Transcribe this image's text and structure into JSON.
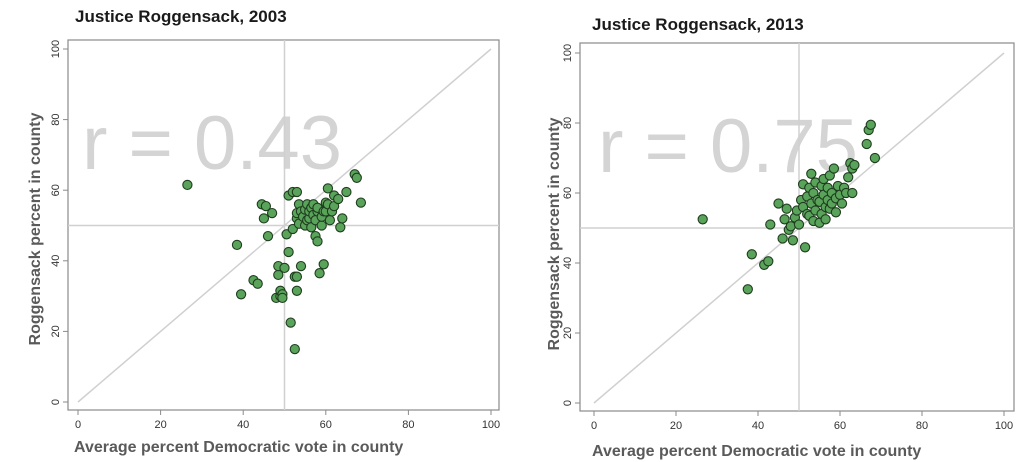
{
  "chart_data": [
    {
      "type": "scatter",
      "title": "Justice Roggensack, 2003",
      "annotation": "r = 0.43",
      "xlabel": "Average percent Democratic vote in county",
      "ylabel": "Roggensack percent in county",
      "xlim": [
        0,
        100
      ],
      "ylim": [
        0,
        100
      ],
      "xticks": [
        "0",
        "20",
        "40",
        "60",
        "80",
        "100"
      ],
      "yticks": [
        "0",
        "20",
        "40",
        "60",
        "80",
        "100"
      ],
      "reference_lines": {
        "x": 50,
        "y": 50,
        "diagonal": true
      },
      "point_color": "#5aa35a",
      "x": [
        26.5,
        38.5,
        39.5,
        42.5,
        43.5,
        44.5,
        45,
        45.5,
        46,
        47,
        48,
        48.5,
        48.5,
        49,
        49,
        49.5,
        49.5,
        50,
        50.5,
        51,
        51,
        51.5,
        52,
        52,
        52.5,
        52.5,
        53,
        53,
        53,
        53,
        53,
        53.5,
        53.5,
        54,
        54,
        54.5,
        55,
        55,
        55.5,
        55.5,
        56,
        56,
        56.5,
        56.5,
        57,
        57,
        57.5,
        57.5,
        58,
        58,
        58,
        58.5,
        59,
        59,
        59.5,
        59.5,
        60,
        60,
        60.5,
        60.5,
        61,
        61.5,
        62,
        62,
        63,
        63.5,
        64,
        65,
        67,
        67.5,
        68.5
      ],
      "y": [
        61.5,
        44.5,
        30.5,
        34.5,
        33.5,
        56,
        52,
        55.5,
        47,
        53.5,
        29.5,
        36,
        38.5,
        30,
        31.5,
        30.5,
        29.5,
        38,
        47.5,
        42.5,
        58.5,
        22.5,
        49,
        59.5,
        15,
        35.5,
        52,
        53.5,
        59.5,
        35.5,
        31.5,
        50.5,
        56,
        54,
        38.5,
        52.5,
        50,
        54.5,
        51.5,
        56,
        52,
        54,
        49.5,
        55,
        53,
        56,
        51.5,
        47,
        54,
        55,
        45.5,
        36.5,
        50,
        52.5,
        54,
        39,
        54,
        56.5,
        56,
        60.5,
        51.5,
        54,
        55.5,
        58.5,
        57.5,
        49.5,
        52,
        59.5,
        64.5,
        63.5,
        56.5
      ]
    },
    {
      "type": "scatter",
      "title": "Justice Roggensack, 2013",
      "annotation": "r = 0.75",
      "xlabel": "Average percent Democratic vote in county",
      "ylabel": "Roggensack percent in county",
      "xlim": [
        0,
        100
      ],
      "ylim": [
        0,
        100
      ],
      "xticks": [
        "0",
        "20",
        "40",
        "60",
        "80",
        "100"
      ],
      "yticks": [
        "0",
        "20",
        "40",
        "60",
        "80",
        "100"
      ],
      "reference_lines": {
        "x": 50,
        "y": 50,
        "diagonal": true
      },
      "point_color": "#5aa35a",
      "x": [
        26.5,
        37.5,
        38.5,
        41.5,
        42.5,
        43,
        45,
        46,
        46.5,
        47,
        47.5,
        48,
        48.5,
        49,
        49.5,
        50,
        50.5,
        51,
        51,
        51.5,
        52,
        52,
        52.5,
        52.5,
        53,
        53,
        53.5,
        53.5,
        54,
        54,
        54.5,
        55,
        55,
        55.5,
        55.5,
        56,
        56,
        56.5,
        56.5,
        57,
        57,
        57.5,
        57.5,
        58,
        58,
        58.5,
        59,
        59,
        59.5,
        60,
        60.5,
        61,
        61.5,
        62,
        62.5,
        63,
        63,
        63.5,
        66.5,
        67,
        67.5,
        68.5
      ],
      "y": [
        52.5,
        32.5,
        42.5,
        39.5,
        40.5,
        51,
        57,
        47,
        52.5,
        55.5,
        49.5,
        50.5,
        46.5,
        53,
        55,
        51,
        58,
        56,
        62.5,
        44.5,
        54,
        59,
        61.5,
        53.5,
        57,
        65.5,
        60,
        52,
        55,
        63,
        58,
        51.5,
        57.5,
        62,
        54,
        59.5,
        64,
        56,
        52.5,
        58,
        61.5,
        55.5,
        65,
        57,
        60,
        67,
        54.5,
        58.5,
        62,
        59.5,
        57,
        61.5,
        60,
        64.5,
        68.5,
        60,
        67,
        68,
        74,
        78,
        79.5,
        70
      ]
    }
  ]
}
